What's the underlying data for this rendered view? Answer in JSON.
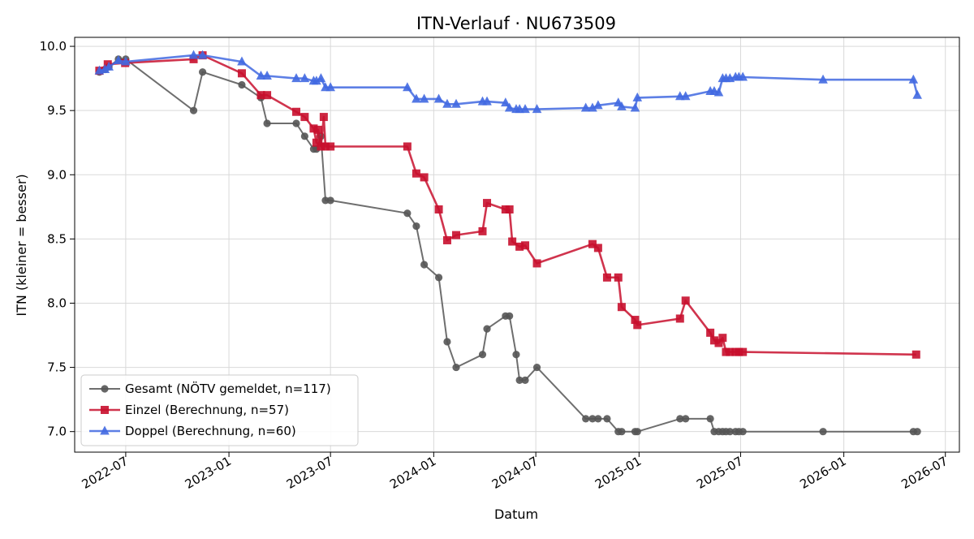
{
  "chart_data": {
    "type": "line",
    "title": "ITN-Verlauf · NU673509",
    "xlabel": "Datum",
    "ylabel": "ITN  (kleiner = besser)",
    "x_type": "date",
    "xlim": [
      "2022-04-01",
      "2026-07-26"
    ],
    "ylim": [
      6.84,
      10.07
    ],
    "x_ticks": [
      "2022-07",
      "2023-01",
      "2023-07",
      "2024-01",
      "2024-07",
      "2025-01",
      "2025-07",
      "2026-01",
      "2026-07"
    ],
    "y_ticks": [
      "7.0",
      "7.5",
      "8.0",
      "8.5",
      "9.0",
      "9.5",
      "10.0"
    ],
    "grid": true,
    "legend_position": "lower-left",
    "series": [
      {
        "name": "Gesamt (NÖTV gemeldet, n=117)",
        "color": "#555555",
        "marker": "circle",
        "points": [
          [
            "2022-05-15",
            9.8
          ],
          [
            "2022-05-25",
            9.82
          ],
          [
            "2022-06-01",
            9.84
          ],
          [
            "2022-06-18",
            9.9
          ],
          [
            "2022-07-01",
            9.9
          ],
          [
            "2022-10-30",
            9.5
          ],
          [
            "2022-11-15",
            9.8
          ],
          [
            "2023-01-24",
            9.7
          ],
          [
            "2023-02-27",
            9.6
          ],
          [
            "2023-03-10",
            9.4
          ],
          [
            "2023-05-01",
            9.4
          ],
          [
            "2023-05-16",
            9.3
          ],
          [
            "2023-06-01",
            9.2
          ],
          [
            "2023-06-06",
            9.2
          ],
          [
            "2023-06-14",
            9.3
          ],
          [
            "2023-06-22",
            8.8
          ],
          [
            "2023-07-01",
            8.8
          ],
          [
            "2023-11-15",
            8.7
          ],
          [
            "2023-12-01",
            8.6
          ],
          [
            "2023-12-15",
            8.3
          ],
          [
            "2024-01-10",
            8.2
          ],
          [
            "2024-01-25",
            7.7
          ],
          [
            "2024-02-10",
            7.5
          ],
          [
            "2024-03-28",
            7.6
          ],
          [
            "2024-04-05",
            7.8
          ],
          [
            "2024-05-08",
            7.9
          ],
          [
            "2024-05-15",
            7.9
          ],
          [
            "2024-05-27",
            7.6
          ],
          [
            "2024-06-02",
            7.4
          ],
          [
            "2024-06-12",
            7.4
          ],
          [
            "2024-07-03",
            7.5
          ],
          [
            "2024-09-28",
            7.1
          ],
          [
            "2024-10-10",
            7.1
          ],
          [
            "2024-10-20",
            7.1
          ],
          [
            "2024-11-05",
            7.1
          ],
          [
            "2024-11-25",
            7.0
          ],
          [
            "2024-12-01",
            7.0
          ],
          [
            "2024-12-25",
            7.0
          ],
          [
            "2024-12-29",
            7.0
          ],
          [
            "2025-03-15",
            7.1
          ],
          [
            "2025-03-25",
            7.1
          ],
          [
            "2025-05-08",
            7.1
          ],
          [
            "2025-05-15",
            7.0
          ],
          [
            "2025-05-23",
            7.0
          ],
          [
            "2025-05-30",
            7.0
          ],
          [
            "2025-06-05",
            7.0
          ],
          [
            "2025-06-12",
            7.0
          ],
          [
            "2025-06-22",
            7.0
          ],
          [
            "2025-06-28",
            7.0
          ],
          [
            "2025-07-05",
            7.0
          ],
          [
            "2025-11-25",
            7.0
          ],
          [
            "2026-05-05",
            7.0
          ],
          [
            "2026-05-12",
            7.0
          ]
        ]
      },
      {
        "name": "Einzel (Berechnung, n=57)",
        "color": "#c8102e",
        "marker": "square",
        "points": [
          [
            "2022-05-15",
            9.81
          ],
          [
            "2022-05-30",
            9.86
          ],
          [
            "2022-06-30",
            9.87
          ],
          [
            "2022-10-30",
            9.9
          ],
          [
            "2022-11-15",
            9.93
          ],
          [
            "2023-01-24",
            9.79
          ],
          [
            "2023-02-27",
            9.62
          ],
          [
            "2023-03-10",
            9.62
          ],
          [
            "2023-05-01",
            9.49
          ],
          [
            "2023-05-16",
            9.45
          ],
          [
            "2023-06-01",
            9.36
          ],
          [
            "2023-06-06",
            9.25
          ],
          [
            "2023-06-09",
            9.35
          ],
          [
            "2023-06-14",
            9.22
          ],
          [
            "2023-06-19",
            9.45
          ],
          [
            "2023-06-22",
            9.22
          ],
          [
            "2023-07-01",
            9.22
          ],
          [
            "2023-11-15",
            9.22
          ],
          [
            "2023-12-01",
            9.01
          ],
          [
            "2023-12-15",
            8.98
          ],
          [
            "2024-01-10",
            8.73
          ],
          [
            "2024-01-25",
            8.49
          ],
          [
            "2024-02-10",
            8.53
          ],
          [
            "2024-03-28",
            8.56
          ],
          [
            "2024-04-05",
            8.78
          ],
          [
            "2024-05-08",
            8.73
          ],
          [
            "2024-05-15",
            8.73
          ],
          [
            "2024-05-20",
            8.48
          ],
          [
            "2024-06-02",
            8.44
          ],
          [
            "2024-06-12",
            8.45
          ],
          [
            "2024-07-03",
            8.31
          ],
          [
            "2024-10-10",
            8.46
          ],
          [
            "2024-10-20",
            8.43
          ],
          [
            "2024-11-05",
            8.2
          ],
          [
            "2024-11-25",
            8.2
          ],
          [
            "2024-12-01",
            7.97
          ],
          [
            "2024-12-25",
            7.87
          ],
          [
            "2024-12-29",
            7.83
          ],
          [
            "2025-03-15",
            7.88
          ],
          [
            "2025-03-25",
            8.02
          ],
          [
            "2025-05-08",
            7.77
          ],
          [
            "2025-05-15",
            7.71
          ],
          [
            "2025-05-23",
            7.69
          ],
          [
            "2025-05-30",
            7.73
          ],
          [
            "2025-06-05",
            7.62
          ],
          [
            "2025-06-12",
            7.62
          ],
          [
            "2025-06-22",
            7.62
          ],
          [
            "2025-06-28",
            7.62
          ],
          [
            "2025-07-05",
            7.62
          ],
          [
            "2026-05-10",
            7.6
          ]
        ]
      },
      {
        "name": "Doppel (Berechnung, n=60)",
        "color": "#4169e1",
        "marker": "triangle",
        "points": [
          [
            "2022-05-15",
            9.81
          ],
          [
            "2022-05-25",
            9.82
          ],
          [
            "2022-06-01",
            9.84
          ],
          [
            "2022-06-18",
            9.89
          ],
          [
            "2022-07-01",
            9.88
          ],
          [
            "2022-10-30",
            9.93
          ],
          [
            "2022-11-15",
            9.93
          ],
          [
            "2023-01-24",
            9.88
          ],
          [
            "2023-02-27",
            9.77
          ],
          [
            "2023-03-10",
            9.77
          ],
          [
            "2023-05-01",
            9.75
          ],
          [
            "2023-05-16",
            9.75
          ],
          [
            "2023-06-01",
            9.73
          ],
          [
            "2023-06-06",
            9.73
          ],
          [
            "2023-06-14",
            9.75
          ],
          [
            "2023-06-22",
            9.68
          ],
          [
            "2023-07-01",
            9.68
          ],
          [
            "2023-11-15",
            9.68
          ],
          [
            "2023-12-01",
            9.59
          ],
          [
            "2023-12-15",
            9.59
          ],
          [
            "2024-01-10",
            9.59
          ],
          [
            "2024-01-25",
            9.55
          ],
          [
            "2024-02-10",
            9.55
          ],
          [
            "2024-03-28",
            9.57
          ],
          [
            "2024-04-05",
            9.57
          ],
          [
            "2024-05-08",
            9.56
          ],
          [
            "2024-05-15",
            9.52
          ],
          [
            "2024-05-27",
            9.51
          ],
          [
            "2024-06-02",
            9.51
          ],
          [
            "2024-06-12",
            9.51
          ],
          [
            "2024-07-03",
            9.51
          ],
          [
            "2024-09-28",
            9.52
          ],
          [
            "2024-10-10",
            9.52
          ],
          [
            "2024-10-20",
            9.54
          ],
          [
            "2024-11-25",
            9.56
          ],
          [
            "2024-12-01",
            9.53
          ],
          [
            "2024-12-25",
            9.52
          ],
          [
            "2024-12-29",
            9.6
          ],
          [
            "2025-03-15",
            9.61
          ],
          [
            "2025-03-25",
            9.61
          ],
          [
            "2025-05-08",
            9.65
          ],
          [
            "2025-05-15",
            9.65
          ],
          [
            "2025-05-23",
            9.64
          ],
          [
            "2025-05-30",
            9.75
          ],
          [
            "2025-06-05",
            9.75
          ],
          [
            "2025-06-12",
            9.75
          ],
          [
            "2025-06-22",
            9.76
          ],
          [
            "2025-06-28",
            9.76
          ],
          [
            "2025-07-05",
            9.76
          ],
          [
            "2025-11-25",
            9.74
          ],
          [
            "2026-05-05",
            9.74
          ],
          [
            "2026-05-12",
            9.62
          ]
        ]
      }
    ]
  }
}
